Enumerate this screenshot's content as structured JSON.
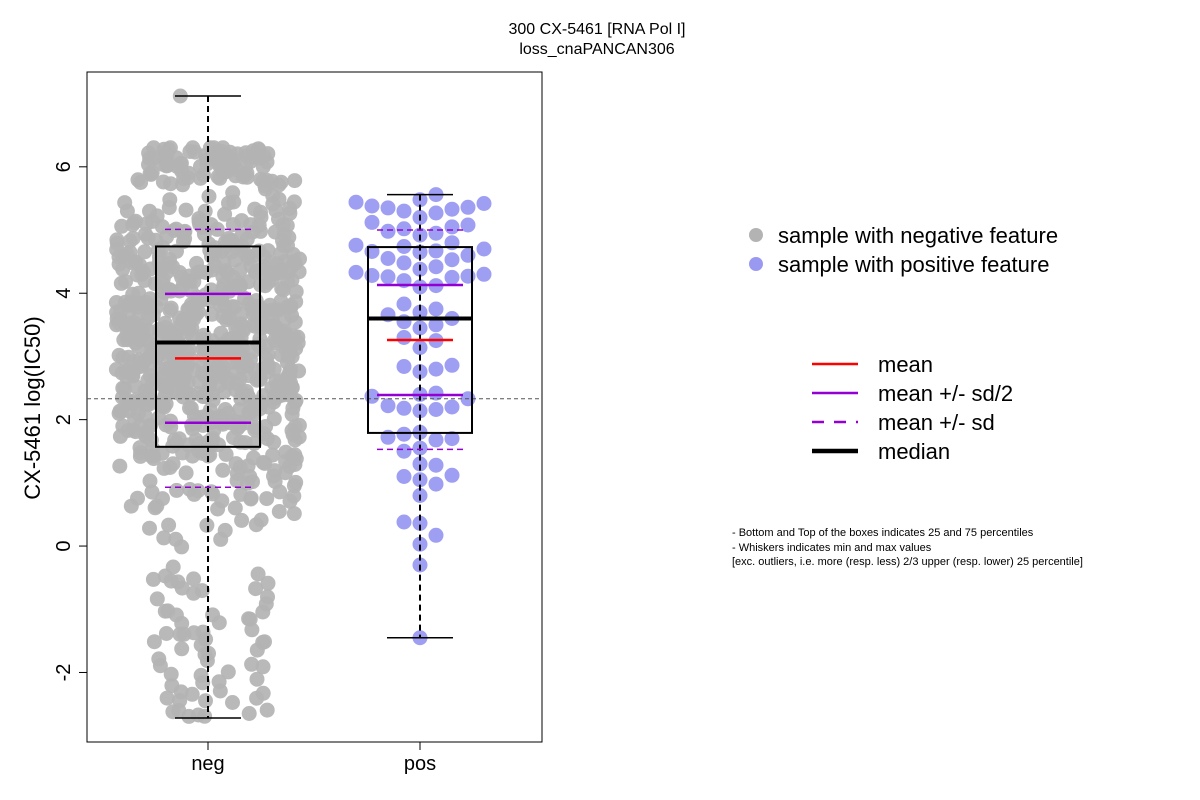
{
  "title": {
    "line1": "300 CX-5461 [RNA Pol I]",
    "line2": "loss_cnaPANCAN306"
  },
  "legend_points": [
    {
      "label": "sample with negative feature",
      "color": "#b3b3b3"
    },
    {
      "label": "sample with positive feature",
      "color": "#9999f2"
    }
  ],
  "legend_lines": [
    {
      "label": "mean",
      "color": "#ff0000",
      "style": "solid"
    },
    {
      "label": "mean +/- sd/2",
      "color": "#9400d3",
      "style": "solid"
    },
    {
      "label": "mean +/- sd",
      "color": "#9400d3",
      "style": "dashed"
    },
    {
      "label": "median",
      "color": "#000000",
      "style": "solid-thick"
    }
  ],
  "notes": [
    "- Bottom and Top of the boxes indicates 25 and 75 percentiles",
    "- Whiskers indicates min and max values",
    "[exc. outliers, i.e. more (resp. less) 2/3 upper (resp. lower) 25 percentile]"
  ],
  "chart_data": {
    "type": "box",
    "ylabel": "CX-5461 log(IC50)",
    "xlabel": "",
    "ylim": [
      -3.1,
      7.5
    ],
    "yticks": [
      -2,
      0,
      2,
      4,
      6
    ],
    "categories": [
      "neg",
      "pos"
    ],
    "reference_line_y": 2.33,
    "groups": [
      {
        "name": "neg",
        "color": "#b3b3b3",
        "whisker_low": -2.72,
        "q1": 1.57,
        "median": 3.22,
        "q3": 4.74,
        "whisker_high": 7.12,
        "mean": 2.97,
        "mean_minus_half_sd": 1.95,
        "mean_plus_half_sd": 3.99,
        "mean_minus_sd": 0.93,
        "mean_plus_sd": 5.01,
        "n_points_approx": 900
      },
      {
        "name": "pos",
        "color": "#9999f2",
        "whisker_low": -1.45,
        "q1": 1.79,
        "median": 3.6,
        "q3": 4.73,
        "whisker_high": 5.56,
        "mean": 3.26,
        "mean_minus_half_sd": 2.39,
        "mean_plus_half_sd": 4.13,
        "mean_minus_sd": 1.53,
        "mean_plus_sd": 5.0,
        "points": [
          5.56,
          5.48,
          5.44,
          5.42,
          5.38,
          5.36,
          5.35,
          5.33,
          5.3,
          5.27,
          5.2,
          5.12,
          5.08,
          5.05,
          5.02,
          4.98,
          4.95,
          4.92,
          4.8,
          4.76,
          4.74,
          4.7,
          4.67,
          4.66,
          4.65,
          4.6,
          4.55,
          4.53,
          4.48,
          4.42,
          4.38,
          4.33,
          4.3,
          4.28,
          4.27,
          4.26,
          4.25,
          4.2,
          4.12,
          4.1,
          3.83,
          3.75,
          3.7,
          3.66,
          3.6,
          3.55,
          3.5,
          3.45,
          3.3,
          3.25,
          3.14,
          2.86,
          2.84,
          2.8,
          2.76,
          2.42,
          2.4,
          2.37,
          2.33,
          2.22,
          2.2,
          2.18,
          2.16,
          2.14,
          1.8,
          1.77,
          1.72,
          1.7,
          1.68,
          1.55,
          1.5,
          1.3,
          1.28,
          1.12,
          1.1,
          1.05,
          0.98,
          0.8,
          0.38,
          0.36,
          0.17,
          0.03,
          -0.3,
          -1.45
        ]
      }
    ]
  }
}
